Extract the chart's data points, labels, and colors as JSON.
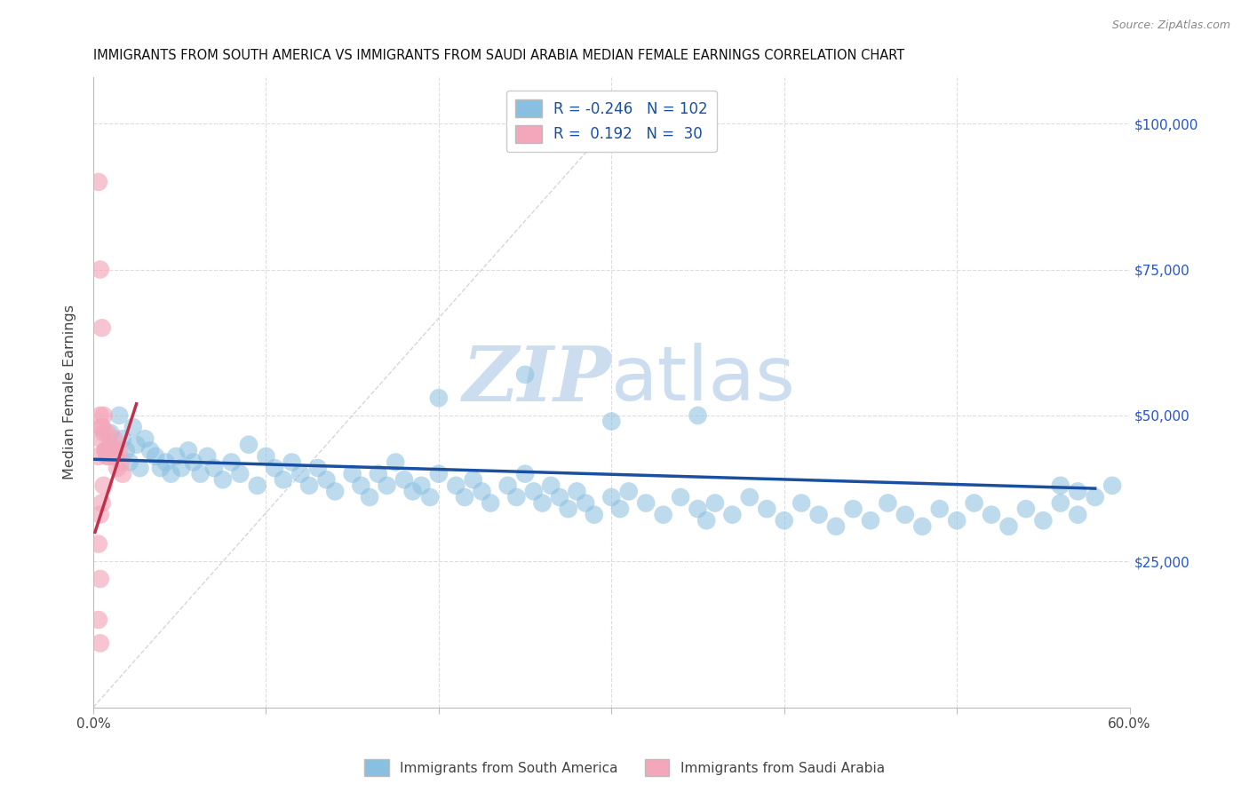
{
  "title": "IMMIGRANTS FROM SOUTH AMERICA VS IMMIGRANTS FROM SAUDI ARABIA MEDIAN FEMALE EARNINGS CORRELATION CHART",
  "source": "Source: ZipAtlas.com",
  "ylabel": "Median Female Earnings",
  "r_south_america": -0.246,
  "n_south_america": 102,
  "r_saudi_arabia": 0.192,
  "n_saudi_arabia": 30,
  "xlim": [
    0.0,
    0.6
  ],
  "ylim": [
    0,
    108000
  ],
  "blue_color": "#89bfe0",
  "pink_color": "#f4a7ba",
  "blue_line_color": "#1a4fa0",
  "pink_line_color": "#c0304a",
  "diag_color": "#cccccc",
  "grid_color": "#dddddd",
  "watermark_color": "#ccddf0",
  "south_america_x": [
    0.008,
    0.01,
    0.012,
    0.015,
    0.017,
    0.019,
    0.021,
    0.023,
    0.025,
    0.027,
    0.03,
    0.033,
    0.036,
    0.039,
    0.042,
    0.045,
    0.048,
    0.051,
    0.055,
    0.058,
    0.062,
    0.066,
    0.07,
    0.075,
    0.08,
    0.085,
    0.09,
    0.095,
    0.1,
    0.105,
    0.11,
    0.115,
    0.12,
    0.125,
    0.13,
    0.135,
    0.14,
    0.15,
    0.155,
    0.16,
    0.165,
    0.17,
    0.175,
    0.18,
    0.185,
    0.19,
    0.195,
    0.2,
    0.21,
    0.215,
    0.22,
    0.225,
    0.23,
    0.24,
    0.245,
    0.25,
    0.255,
    0.26,
    0.265,
    0.27,
    0.275,
    0.28,
    0.285,
    0.29,
    0.3,
    0.305,
    0.31,
    0.32,
    0.33,
    0.34,
    0.35,
    0.355,
    0.36,
    0.37,
    0.38,
    0.39,
    0.4,
    0.41,
    0.42,
    0.43,
    0.44,
    0.45,
    0.46,
    0.47,
    0.48,
    0.49,
    0.5,
    0.51,
    0.52,
    0.53,
    0.54,
    0.55,
    0.56,
    0.57,
    0.2,
    0.25,
    0.3,
    0.35,
    0.56,
    0.57,
    0.58,
    0.59
  ],
  "south_america_y": [
    44000,
    47000,
    43000,
    50000,
    46000,
    44000,
    42000,
    48000,
    45000,
    41000,
    46000,
    44000,
    43000,
    41000,
    42000,
    40000,
    43000,
    41000,
    44000,
    42000,
    40000,
    43000,
    41000,
    39000,
    42000,
    40000,
    45000,
    38000,
    43000,
    41000,
    39000,
    42000,
    40000,
    38000,
    41000,
    39000,
    37000,
    40000,
    38000,
    36000,
    40000,
    38000,
    42000,
    39000,
    37000,
    38000,
    36000,
    40000,
    38000,
    36000,
    39000,
    37000,
    35000,
    38000,
    36000,
    40000,
    37000,
    35000,
    38000,
    36000,
    34000,
    37000,
    35000,
    33000,
    36000,
    34000,
    37000,
    35000,
    33000,
    36000,
    34000,
    32000,
    35000,
    33000,
    36000,
    34000,
    32000,
    35000,
    33000,
    31000,
    34000,
    32000,
    35000,
    33000,
    31000,
    34000,
    32000,
    35000,
    33000,
    31000,
    34000,
    32000,
    35000,
    33000,
    53000,
    57000,
    49000,
    50000,
    38000,
    37000,
    36000,
    38000
  ],
  "saudi_arabia_x": [
    0.003,
    0.004,
    0.005,
    0.006,
    0.007,
    0.008,
    0.009,
    0.01,
    0.011,
    0.012,
    0.013,
    0.014,
    0.015,
    0.016,
    0.017,
    0.004,
    0.005,
    0.006,
    0.007,
    0.008,
    0.003,
    0.004,
    0.005,
    0.006,
    0.004,
    0.005,
    0.003,
    0.004,
    0.003,
    0.004
  ],
  "saudi_arabia_y": [
    43000,
    46000,
    48000,
    50000,
    44000,
    47000,
    43000,
    45000,
    44000,
    46000,
    43000,
    41000,
    44000,
    42000,
    40000,
    50000,
    48000,
    47000,
    44000,
    43000,
    90000,
    75000,
    65000,
    38000,
    33000,
    35000,
    28000,
    22000,
    15000,
    11000
  ]
}
